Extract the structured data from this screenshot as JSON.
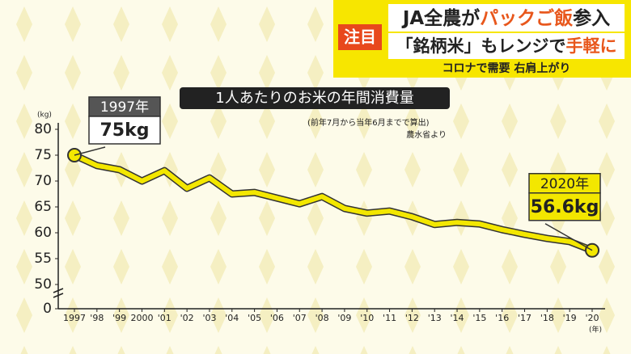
{
  "header": {
    "badge": "注目",
    "line1": [
      "JA全農が",
      "パックご飯",
      "参入"
    ],
    "line2": [
      "「銘柄米」もレンジで",
      "手軽に"
    ],
    "line3": "コロナで需要 右肩上がり"
  },
  "chart_data": {
    "type": "line",
    "title": "1人あたりのお米の年間消費量",
    "notes": [
      "(前年7月から当年6月までで算出)",
      "農水省より"
    ],
    "y_unit": "(kg)",
    "x_unit": "(年)",
    "categories": [
      "1997",
      "'98",
      "'99",
      "2000",
      "'01",
      "'02",
      "'03",
      "'04",
      "'05",
      "'06",
      "'07",
      "'08",
      "'09",
      "'10",
      "'11",
      "'12",
      "'13",
      "'14",
      "'15",
      "'16",
      "'17",
      "'18",
      "'19",
      "'20"
    ],
    "series": [
      {
        "name": "1人あたりのお米の年間消費量",
        "color": "#f3e700",
        "values": [
          75,
          73,
          72.2,
          70,
          72,
          68.6,
          70.6,
          67.5,
          67.8,
          66.7,
          65.6,
          67,
          64.7,
          63.8,
          64.2,
          63.1,
          61.6,
          62,
          61.7,
          60.6,
          59.7,
          58.9,
          58.3,
          56.6
        ],
        "value_labels": [
          "75kg",
          null,
          null,
          null,
          null,
          null,
          null,
          null,
          null,
          null,
          null,
          null,
          null,
          null,
          null,
          null,
          null,
          null,
          null,
          null,
          null,
          null,
          null,
          "56.6kg"
        ],
        "callout_titles": [
          "1997年",
          null,
          null,
          null,
          null,
          null,
          null,
          null,
          null,
          null,
          null,
          null,
          null,
          null,
          null,
          null,
          null,
          null,
          null,
          null,
          null,
          null,
          null,
          "2020年"
        ]
      }
    ],
    "ylim": [
      0,
      80
    ],
    "yticks": [
      0,
      50,
      55,
      60,
      65,
      70,
      75,
      80
    ],
    "axis_break": [
      0,
      50
    ],
    "grid": false
  }
}
